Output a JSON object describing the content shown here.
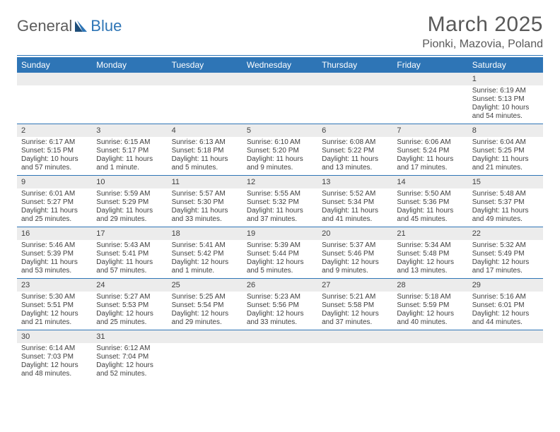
{
  "logo": {
    "text_a": "General",
    "text_b": "Blue"
  },
  "title": "March 2025",
  "location": "Pionki, Mazovia, Poland",
  "colors": {
    "header_bg": "#2e75b6",
    "header_text": "#ffffff",
    "daynum_bg": "#ececec",
    "text": "#404040",
    "rule": "#2e75b6"
  },
  "weekdays": [
    "Sunday",
    "Monday",
    "Tuesday",
    "Wednesday",
    "Thursday",
    "Friday",
    "Saturday"
  ],
  "weeks": [
    [
      null,
      null,
      null,
      null,
      null,
      null,
      {
        "n": "1",
        "sr": "Sunrise: 6:19 AM",
        "ss": "Sunset: 5:13 PM",
        "d1": "Daylight: 10 hours",
        "d2": "and 54 minutes."
      }
    ],
    [
      {
        "n": "2",
        "sr": "Sunrise: 6:17 AM",
        "ss": "Sunset: 5:15 PM",
        "d1": "Daylight: 10 hours",
        "d2": "and 57 minutes."
      },
      {
        "n": "3",
        "sr": "Sunrise: 6:15 AM",
        "ss": "Sunset: 5:17 PM",
        "d1": "Daylight: 11 hours",
        "d2": "and 1 minute."
      },
      {
        "n": "4",
        "sr": "Sunrise: 6:13 AM",
        "ss": "Sunset: 5:18 PM",
        "d1": "Daylight: 11 hours",
        "d2": "and 5 minutes."
      },
      {
        "n": "5",
        "sr": "Sunrise: 6:10 AM",
        "ss": "Sunset: 5:20 PM",
        "d1": "Daylight: 11 hours",
        "d2": "and 9 minutes."
      },
      {
        "n": "6",
        "sr": "Sunrise: 6:08 AM",
        "ss": "Sunset: 5:22 PM",
        "d1": "Daylight: 11 hours",
        "d2": "and 13 minutes."
      },
      {
        "n": "7",
        "sr": "Sunrise: 6:06 AM",
        "ss": "Sunset: 5:24 PM",
        "d1": "Daylight: 11 hours",
        "d2": "and 17 minutes."
      },
      {
        "n": "8",
        "sr": "Sunrise: 6:04 AM",
        "ss": "Sunset: 5:25 PM",
        "d1": "Daylight: 11 hours",
        "d2": "and 21 minutes."
      }
    ],
    [
      {
        "n": "9",
        "sr": "Sunrise: 6:01 AM",
        "ss": "Sunset: 5:27 PM",
        "d1": "Daylight: 11 hours",
        "d2": "and 25 minutes."
      },
      {
        "n": "10",
        "sr": "Sunrise: 5:59 AM",
        "ss": "Sunset: 5:29 PM",
        "d1": "Daylight: 11 hours",
        "d2": "and 29 minutes."
      },
      {
        "n": "11",
        "sr": "Sunrise: 5:57 AM",
        "ss": "Sunset: 5:30 PM",
        "d1": "Daylight: 11 hours",
        "d2": "and 33 minutes."
      },
      {
        "n": "12",
        "sr": "Sunrise: 5:55 AM",
        "ss": "Sunset: 5:32 PM",
        "d1": "Daylight: 11 hours",
        "d2": "and 37 minutes."
      },
      {
        "n": "13",
        "sr": "Sunrise: 5:52 AM",
        "ss": "Sunset: 5:34 PM",
        "d1": "Daylight: 11 hours",
        "d2": "and 41 minutes."
      },
      {
        "n": "14",
        "sr": "Sunrise: 5:50 AM",
        "ss": "Sunset: 5:36 PM",
        "d1": "Daylight: 11 hours",
        "d2": "and 45 minutes."
      },
      {
        "n": "15",
        "sr": "Sunrise: 5:48 AM",
        "ss": "Sunset: 5:37 PM",
        "d1": "Daylight: 11 hours",
        "d2": "and 49 minutes."
      }
    ],
    [
      {
        "n": "16",
        "sr": "Sunrise: 5:46 AM",
        "ss": "Sunset: 5:39 PM",
        "d1": "Daylight: 11 hours",
        "d2": "and 53 minutes."
      },
      {
        "n": "17",
        "sr": "Sunrise: 5:43 AM",
        "ss": "Sunset: 5:41 PM",
        "d1": "Daylight: 11 hours",
        "d2": "and 57 minutes."
      },
      {
        "n": "18",
        "sr": "Sunrise: 5:41 AM",
        "ss": "Sunset: 5:42 PM",
        "d1": "Daylight: 12 hours",
        "d2": "and 1 minute."
      },
      {
        "n": "19",
        "sr": "Sunrise: 5:39 AM",
        "ss": "Sunset: 5:44 PM",
        "d1": "Daylight: 12 hours",
        "d2": "and 5 minutes."
      },
      {
        "n": "20",
        "sr": "Sunrise: 5:37 AM",
        "ss": "Sunset: 5:46 PM",
        "d1": "Daylight: 12 hours",
        "d2": "and 9 minutes."
      },
      {
        "n": "21",
        "sr": "Sunrise: 5:34 AM",
        "ss": "Sunset: 5:48 PM",
        "d1": "Daylight: 12 hours",
        "d2": "and 13 minutes."
      },
      {
        "n": "22",
        "sr": "Sunrise: 5:32 AM",
        "ss": "Sunset: 5:49 PM",
        "d1": "Daylight: 12 hours",
        "d2": "and 17 minutes."
      }
    ],
    [
      {
        "n": "23",
        "sr": "Sunrise: 5:30 AM",
        "ss": "Sunset: 5:51 PM",
        "d1": "Daylight: 12 hours",
        "d2": "and 21 minutes."
      },
      {
        "n": "24",
        "sr": "Sunrise: 5:27 AM",
        "ss": "Sunset: 5:53 PM",
        "d1": "Daylight: 12 hours",
        "d2": "and 25 minutes."
      },
      {
        "n": "25",
        "sr": "Sunrise: 5:25 AM",
        "ss": "Sunset: 5:54 PM",
        "d1": "Daylight: 12 hours",
        "d2": "and 29 minutes."
      },
      {
        "n": "26",
        "sr": "Sunrise: 5:23 AM",
        "ss": "Sunset: 5:56 PM",
        "d1": "Daylight: 12 hours",
        "d2": "and 33 minutes."
      },
      {
        "n": "27",
        "sr": "Sunrise: 5:21 AM",
        "ss": "Sunset: 5:58 PM",
        "d1": "Daylight: 12 hours",
        "d2": "and 37 minutes."
      },
      {
        "n": "28",
        "sr": "Sunrise: 5:18 AM",
        "ss": "Sunset: 5:59 PM",
        "d1": "Daylight: 12 hours",
        "d2": "and 40 minutes."
      },
      {
        "n": "29",
        "sr": "Sunrise: 5:16 AM",
        "ss": "Sunset: 6:01 PM",
        "d1": "Daylight: 12 hours",
        "d2": "and 44 minutes."
      }
    ],
    [
      {
        "n": "30",
        "sr": "Sunrise: 6:14 AM",
        "ss": "Sunset: 7:03 PM",
        "d1": "Daylight: 12 hours",
        "d2": "and 48 minutes."
      },
      {
        "n": "31",
        "sr": "Sunrise: 6:12 AM",
        "ss": "Sunset: 7:04 PM",
        "d1": "Daylight: 12 hours",
        "d2": "and 52 minutes."
      },
      null,
      null,
      null,
      null,
      null
    ]
  ]
}
